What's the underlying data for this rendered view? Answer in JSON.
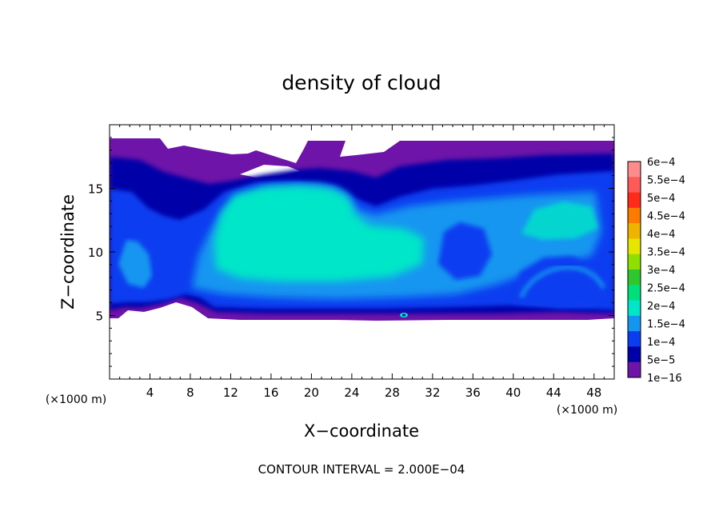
{
  "chart_data": {
    "type": "heatmap",
    "title": "density of cloud",
    "xlabel": "X−coordinate",
    "ylabel": "Z−coordinate",
    "x_unit_left": "(×1000 m)",
    "x_unit_right": "(×1000 m)",
    "xlim": [
      0,
      50
    ],
    "ylim": [
      0,
      20
    ],
    "x_ticks": [
      4,
      8,
      12,
      16,
      20,
      24,
      28,
      32,
      36,
      40,
      44,
      48
    ],
    "y_ticks": [
      5,
      10,
      15
    ],
    "footer": "CONTOUR INTERVAL = 2.000E−04",
    "colorbar": {
      "labels": [
        "6e−4",
        "5.5e−4",
        "5e−4",
        "4.5e−4",
        "4e−4",
        "3.5e−4",
        "3e−4",
        "2.5e−4",
        "2e−4",
        "1.5e−4",
        "1e−4",
        "5e−5",
        "1e−16"
      ],
      "colors": [
        "#ff8c8c",
        "#ff5a5a",
        "#ff2a1a",
        "#ff7a00",
        "#f0b400",
        "#e6e600",
        "#8fe000",
        "#2ec82e",
        "#00e07a",
        "#00e6c8",
        "#1496f0",
        "#0a3cf0",
        "#0000a8",
        "#6e14a8"
      ]
    },
    "regions": [
      {
        "level": "1e-16",
        "color": "#6e14a8",
        "x_range": [
          0,
          50
        ],
        "z_range": [
          4.8,
          18.8
        ]
      },
      {
        "level": "5e-5",
        "color": "#0000a8",
        "x_range": [
          0,
          50
        ],
        "z_range": [
          5.3,
          17.5
        ]
      },
      {
        "level": "1e-4",
        "color": "#0a3cf0",
        "x_range": [
          0,
          50
        ],
        "z_range": [
          5.8,
          16.5
        ]
      },
      {
        "level": "1.5e-4",
        "color": "#1496f0",
        "x_range": [
          10,
          48
        ],
        "z_range": [
          6.5,
          15.8
        ]
      },
      {
        "level": "2e-4",
        "color": "#00e6c8",
        "x_range": [
          11,
          24
        ],
        "z_range": [
          8.5,
          15.8
        ]
      }
    ]
  }
}
